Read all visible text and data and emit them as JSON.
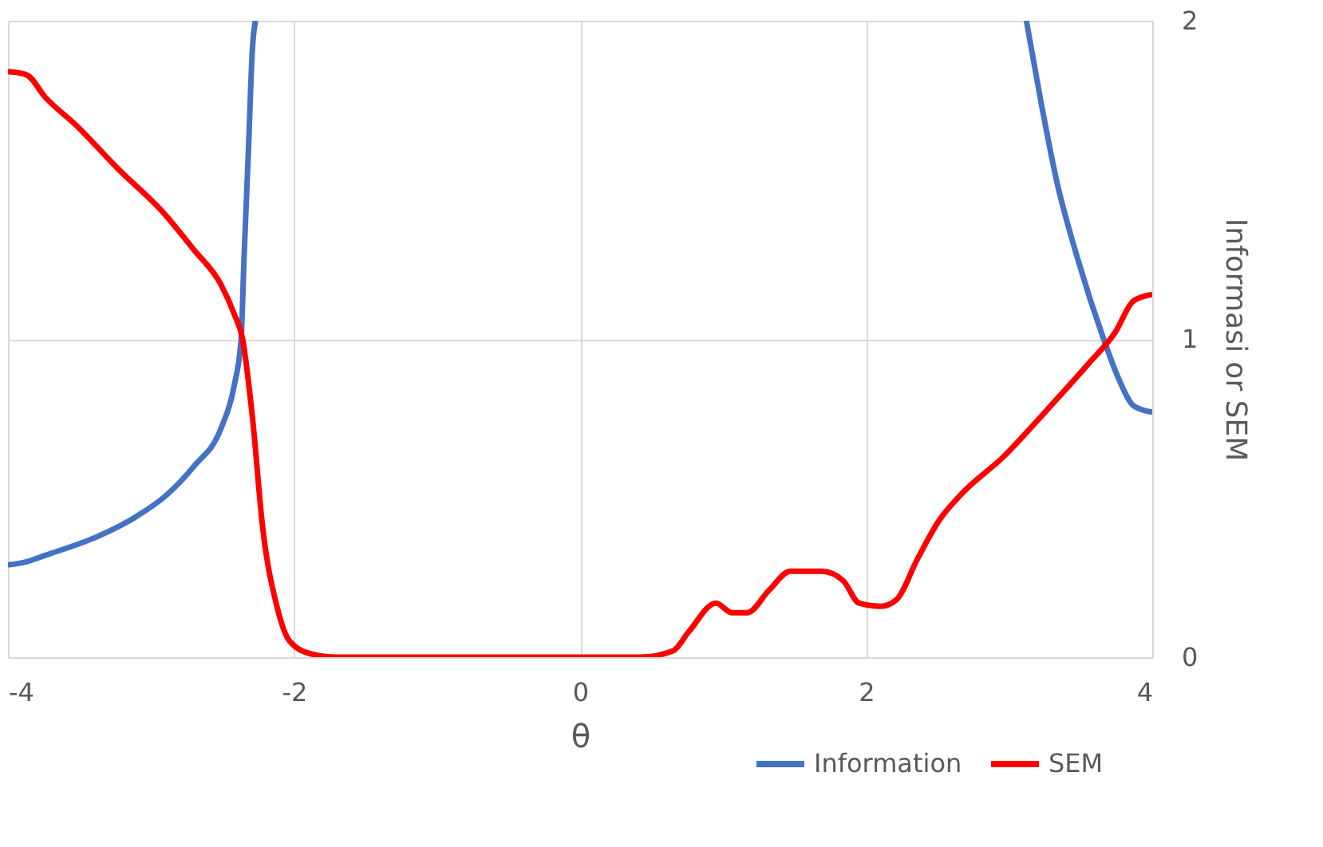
{
  "chart_data": {
    "type": "line",
    "xlabel": "θ",
    "ylabel": "Informasi or SEM",
    "xlim": [
      -4,
      4
    ],
    "xticks": [
      -4,
      -2,
      0,
      2,
      4
    ],
    "ylim": [
      0,
      2
    ],
    "yticks": [
      0,
      1,
      2
    ],
    "grid": true,
    "legend": "bottom right",
    "marker": "none",
    "line_style": "solid",
    "series": [
      {
        "name": "Information",
        "color": "#4472c4",
        "x": [
          -4,
          -3.87,
          -3.74,
          -3.37,
          -3.11,
          -2.89,
          -2.7,
          -2.51,
          -2.42,
          -2.37,
          -2.35,
          -2.32,
          -2.29,
          -2.27,
          0,
          3.12,
          3.22,
          3.33,
          3.48,
          3.66,
          3.77,
          3.87,
          4.0
        ],
        "values": [
          0.29,
          0.3,
          0.32,
          0.38,
          0.44,
          0.51,
          0.6,
          0.72,
          0.85,
          1.0,
          1.25,
          1.58,
          1.92,
          2.0,
          null,
          2.0,
          1.75,
          1.5,
          1.25,
          1.0,
          0.87,
          0.79,
          0.77
        ]
      },
      {
        "name": "SEM",
        "color": "#ff0000",
        "x": [
          -4,
          -3.87,
          -3.74,
          -3.52,
          -3.22,
          -2.92,
          -2.7,
          -2.51,
          -2.42,
          -2.36,
          -2.29,
          -2.22,
          -2.12,
          -2.03,
          -1.88,
          -1.7,
          0,
          0.42,
          0.65,
          0.76,
          0.95,
          1.06,
          1.17,
          1.32,
          1.47,
          1.69,
          1.84,
          1.95,
          2.1,
          2.21,
          2.36,
          2.51,
          2.66,
          2.96,
          3.25,
          3.55,
          3.74,
          3.87,
          4.0
        ],
        "values": [
          1.84,
          1.83,
          1.76,
          1.67,
          1.53,
          1.4,
          1.28,
          1.17,
          1.08,
          1.0,
          0.75,
          0.41,
          0.16,
          0.05,
          0.01,
          0.0,
          0.0,
          0.0,
          0.02,
          0.08,
          0.17,
          0.14,
          0.14,
          0.21,
          0.27,
          0.27,
          0.24,
          0.17,
          0.16,
          0.18,
          0.31,
          0.43,
          0.51,
          0.63,
          0.77,
          0.92,
          1.02,
          1.12,
          1.14
        ]
      }
    ]
  }
}
